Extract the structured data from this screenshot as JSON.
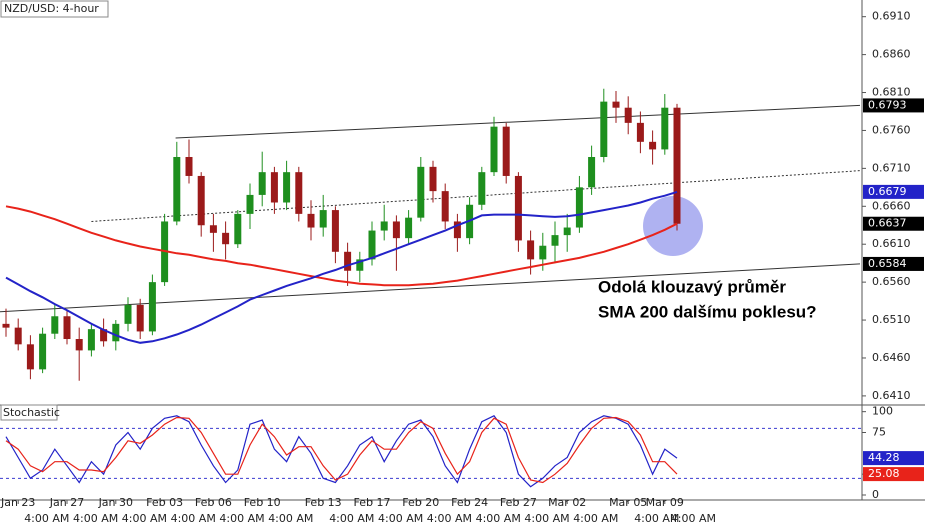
{
  "chart_data": [
    {
      "type": "candlestick",
      "title": "NZD/USD: 4-hour",
      "categories": [
        null,
        "Jan 23",
        null,
        null,
        null,
        "Jan 27",
        null,
        null,
        null,
        "Jan 30",
        null,
        null,
        null,
        "Feb 03",
        null,
        null,
        null,
        "Feb 06",
        null,
        null,
        null,
        "Feb 10",
        null,
        null,
        null,
        null,
        "Feb 13",
        null,
        null,
        null,
        "Feb 17",
        null,
        null,
        null,
        "Feb 20",
        null,
        null,
        null,
        "Feb 24",
        null,
        null,
        null,
        "Feb 27",
        null,
        null,
        null,
        "Mar 02",
        null,
        null,
        null,
        null,
        "Mar 05",
        null,
        null,
        "Mar 09",
        null
      ],
      "time_labels": [
        null,
        "4:00 AM",
        null,
        null,
        null,
        "4:00 AM",
        null,
        null,
        null,
        "4:00 AM",
        null,
        null,
        null,
        "4:00 AM",
        null,
        null,
        null,
        "4:00 AM",
        null,
        null,
        null,
        "4:00 AM",
        null,
        null,
        null,
        null,
        "4:00 AM",
        null,
        null,
        null,
        "4:00 AM",
        null,
        null,
        null,
        "4:00 AM",
        null,
        null,
        null,
        "4:00 AM",
        null,
        null,
        null,
        "4:00 AM",
        null,
        null,
        null,
        "4:00 AM",
        null,
        null,
        null,
        null,
        "4:00 AM",
        null,
        null,
        "4:00 AM",
        null
      ],
      "open": [
        0.6505,
        0.65,
        0.6478,
        0.6445,
        0.6492,
        0.6515,
        0.6485,
        0.647,
        0.6498,
        0.6482,
        0.6505,
        0.653,
        0.6495,
        0.656,
        0.664,
        0.6725,
        0.67,
        0.6635,
        0.6625,
        0.661,
        0.665,
        0.6675,
        0.6705,
        0.6665,
        0.6705,
        0.665,
        0.6632,
        0.6655,
        0.66,
        0.6575,
        0.659,
        0.6628,
        0.664,
        0.6618,
        0.6645,
        0.6712,
        0.668,
        0.664,
        0.6618,
        0.6662,
        0.6705,
        0.6765,
        0.67,
        0.6615,
        0.659,
        0.6608,
        0.6622,
        0.6632,
        0.6685,
        0.6725,
        0.6798,
        0.679,
        0.677,
        0.6745,
        0.6735,
        0.679
      ],
      "high": [
        0.6525,
        0.6512,
        0.649,
        0.65,
        0.653,
        0.6522,
        0.65,
        0.6505,
        0.6512,
        0.651,
        0.654,
        0.6538,
        0.657,
        0.665,
        0.6745,
        0.6748,
        0.6705,
        0.665,
        0.664,
        0.6655,
        0.669,
        0.6732,
        0.6712,
        0.672,
        0.6712,
        0.6668,
        0.6675,
        0.666,
        0.6612,
        0.66,
        0.664,
        0.6662,
        0.6648,
        0.6655,
        0.6725,
        0.672,
        0.669,
        0.665,
        0.6672,
        0.6712,
        0.6778,
        0.677,
        0.6705,
        0.6628,
        0.6625,
        0.664,
        0.665,
        0.67,
        0.674,
        0.6815,
        0.6812,
        0.6805,
        0.6785,
        0.676,
        0.6808,
        0.6795
      ],
      "low": [
        0.6488,
        0.647,
        0.6432,
        0.644,
        0.6485,
        0.6478,
        0.643,
        0.6462,
        0.6475,
        0.647,
        0.6495,
        0.6485,
        0.649,
        0.6555,
        0.6635,
        0.669,
        0.662,
        0.66,
        0.659,
        0.6605,
        0.663,
        0.666,
        0.665,
        0.6655,
        0.664,
        0.6615,
        0.662,
        0.6585,
        0.6555,
        0.656,
        0.6582,
        0.6615,
        0.6575,
        0.661,
        0.664,
        0.6665,
        0.663,
        0.66,
        0.661,
        0.6655,
        0.67,
        0.669,
        0.66,
        0.657,
        0.6575,
        0.6585,
        0.66,
        0.6625,
        0.6675,
        0.6718,
        0.677,
        0.6755,
        0.673,
        0.6715,
        0.6728,
        0.6628
      ],
      "close": [
        0.65,
        0.6478,
        0.6445,
        0.6492,
        0.6515,
        0.6485,
        0.647,
        0.6498,
        0.6482,
        0.6505,
        0.653,
        0.6495,
        0.656,
        0.664,
        0.6725,
        0.67,
        0.6635,
        0.6625,
        0.661,
        0.665,
        0.6675,
        0.6705,
        0.6665,
        0.6705,
        0.665,
        0.6632,
        0.6655,
        0.66,
        0.6575,
        0.659,
        0.6628,
        0.664,
        0.6618,
        0.6645,
        0.6712,
        0.668,
        0.664,
        0.6618,
        0.6662,
        0.6705,
        0.6765,
        0.67,
        0.6615,
        0.659,
        0.6608,
        0.6622,
        0.6632,
        0.6685,
        0.6725,
        0.6798,
        0.679,
        0.677,
        0.6745,
        0.6735,
        0.679,
        0.6637
      ],
      "up_color": "#1e8f1e",
      "down_color": "#9b1a1a",
      "close_label_color": "#000000",
      "overlays": [
        {
          "color": "#e8231a",
          "axis_label": false,
          "values": [
            0.666,
            0.6657,
            0.6653,
            0.6648,
            0.6643,
            0.6637,
            0.6631,
            0.6625,
            0.662,
            0.6615,
            0.6611,
            0.6607,
            0.6604,
            0.6601,
            0.6598,
            0.6596,
            0.6593,
            0.659,
            0.6588,
            0.6585,
            0.6583,
            0.658,
            0.6577,
            0.6574,
            0.6571,
            0.6568,
            0.6565,
            0.6562,
            0.656,
            0.6558,
            0.6557,
            0.6556,
            0.6556,
            0.6556,
            0.6557,
            0.6558,
            0.656,
            0.6562,
            0.6565,
            0.6568,
            0.6571,
            0.6574,
            0.6577,
            0.658,
            0.6583,
            0.6586,
            0.6589,
            0.6592,
            0.6596,
            0.66,
            0.6605,
            0.661,
            0.6616,
            0.6622,
            0.6629,
            0.6637
          ]
        },
        {
          "color": "#2323c8",
          "axis_label": true,
          "values": [
            0.6566,
            0.6557,
            0.6548,
            0.654,
            0.6531,
            0.6523,
            0.6514,
            0.6505,
            0.6497,
            0.649,
            0.6484,
            0.648,
            0.6482,
            0.6486,
            0.6491,
            0.6497,
            0.6504,
            0.6512,
            0.652,
            0.6528,
            0.6537,
            0.6543,
            0.6549,
            0.6555,
            0.656,
            0.6565,
            0.6571,
            0.6576,
            0.6582,
            0.6587,
            0.6592,
            0.6598,
            0.6604,
            0.661,
            0.6616,
            0.6622,
            0.6628,
            0.6635,
            0.6641,
            0.6648,
            0.6649,
            0.6649,
            0.6649,
            0.6648,
            0.6647,
            0.6646,
            0.6647,
            0.6649,
            0.6652,
            0.6655,
            0.6658,
            0.6661,
            0.6665,
            0.667,
            0.6674,
            0.6679
          ]
        }
      ],
      "trendlines": [
        {
          "style": "solid",
          "axis_label": true,
          "x": [
            13.9,
            70
          ],
          "y": [
            0.675,
            0.6793
          ]
        },
        {
          "style": "dotted",
          "axis_label": false,
          "x": [
            7,
            70
          ],
          "y": [
            0.664,
            0.6707
          ]
        },
        {
          "style": "solid",
          "axis_label": true,
          "x": [
            -0.5,
            70
          ],
          "y": [
            0.6521,
            0.6584
          ]
        }
      ],
      "ylim": [
        0.6398,
        0.6932
      ],
      "yticks": [
        {
          "value": 0.691,
          "label": "0.6910"
        },
        {
          "value": 0.686,
          "label": "0.6860"
        },
        {
          "value": 0.681,
          "label": "0.6810"
        },
        {
          "value": 0.676,
          "label": "0.6760"
        },
        {
          "value": 0.671,
          "label": "0.6710"
        },
        {
          "value": 0.666,
          "label": "0.6660"
        },
        {
          "value": 0.661,
          "label": "0.6610"
        },
        {
          "value": 0.656,
          "label": "0.6560"
        },
        {
          "value": 0.651,
          "label": "0.6510"
        },
        {
          "value": 0.646,
          "label": "0.6460"
        },
        {
          "value": 0.641,
          "label": "0.6410"
        }
      ],
      "annotation": [
        "Odolá klouzavý průměr",
        "SMA 200 dalšímu poklesu?"
      ]
    },
    {
      "type": "line",
      "title": "Stochastic",
      "series": [
        {
          "color": "#2323c8",
          "values": [
            70,
            45,
            20,
            30,
            55,
            35,
            15,
            40,
            25,
            60,
            75,
            55,
            80,
            92,
            95,
            88,
            60,
            35,
            15,
            30,
            85,
            90,
            55,
            40,
            70,
            50,
            20,
            15,
            35,
            60,
            70,
            40,
            65,
            85,
            90,
            70,
            35,
            15,
            55,
            88,
            95,
            75,
            25,
            10,
            20,
            35,
            45,
            75,
            88,
            95,
            92,
            85,
            60,
            25,
            55,
            44.28
          ]
        },
        {
          "color": "#e8231a",
          "values": [
            65,
            55,
            35,
            28,
            40,
            40,
            30,
            30,
            28,
            45,
            65,
            62,
            72,
            85,
            93,
            92,
            75,
            50,
            25,
            25,
            60,
            85,
            70,
            48,
            58,
            58,
            35,
            18,
            25,
            48,
            65,
            55,
            55,
            75,
            88,
            80,
            50,
            25,
            40,
            75,
            92,
            85,
            45,
            18,
            15,
            25,
            38,
            60,
            80,
            92,
            93,
            88,
            72,
            40,
            40,
            25.08
          ]
        }
      ],
      "levels": [
        80,
        20
      ],
      "level_color": "#3a3ad0",
      "ylim": [
        -6,
        108
      ],
      "yticks": [
        100,
        75,
        25,
        0
      ]
    }
  ]
}
